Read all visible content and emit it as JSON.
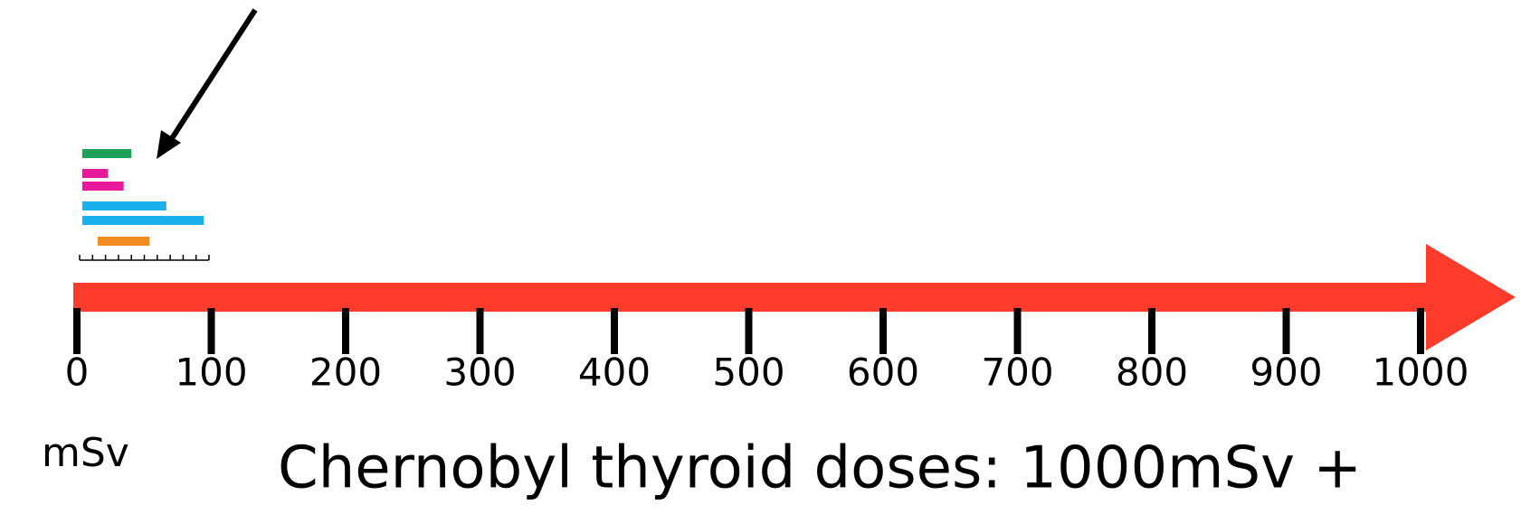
{
  "chart_data": [
    {
      "type": "number-line",
      "title": "Chernobyl thyroid doses: 1000mSv +",
      "xlabel": "mSv",
      "xlim": [
        0,
        1000
      ],
      "xticks": [
        0,
        100,
        200,
        300,
        400,
        500,
        600,
        700,
        800,
        900,
        1000
      ],
      "color": "#ff3b2b"
    },
    {
      "type": "range",
      "xlim": [
        0,
        100
      ],
      "xticks": [
        0,
        10,
        20,
        30,
        40,
        50,
        60,
        70,
        80,
        90,
        100
      ],
      "low": [
        2,
        2,
        2,
        2,
        2,
        14
      ],
      "high": [
        40,
        22,
        34,
        67,
        96,
        54
      ],
      "colors": [
        "#1fa05a",
        "#e8199a",
        "#e8199a",
        "#1ab0ec",
        "#1ab0ec",
        "#f08c22"
      ]
    }
  ]
}
